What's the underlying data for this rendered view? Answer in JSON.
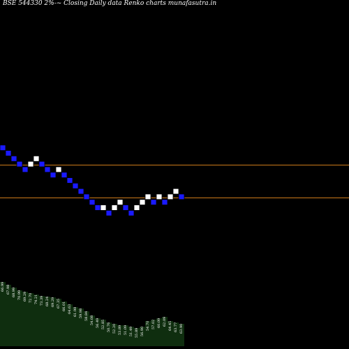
{
  "chart_data": {
    "type": "renko",
    "title": "BSE 544330  2%-~  Closing Daily data  Renko  charts munafasutra.in",
    "colors": {
      "background": "#000000",
      "up_brick": "#ffffff",
      "down_brick": "#1a1aff",
      "brick_border": "#000000",
      "level_line": "#cc7a1a",
      "volume_fill": "#0f2e0f"
    },
    "bricks": [
      {
        "col": 0,
        "row": 9,
        "dir": "down"
      },
      {
        "col": 1,
        "row": 8,
        "dir": "down"
      },
      {
        "col": 2,
        "row": 7,
        "dir": "down"
      },
      {
        "col": 3,
        "row": 6,
        "dir": "down"
      },
      {
        "col": 4,
        "row": 5,
        "dir": "down"
      },
      {
        "col": 5,
        "row": 6,
        "dir": "up"
      },
      {
        "col": 6,
        "row": 7,
        "dir": "up"
      },
      {
        "col": 7,
        "row": 6,
        "dir": "down"
      },
      {
        "col": 8,
        "row": 5,
        "dir": "down"
      },
      {
        "col": 9,
        "row": 4,
        "dir": "down"
      },
      {
        "col": 10,
        "row": 5,
        "dir": "up"
      },
      {
        "col": 11,
        "row": 4,
        "dir": "down"
      },
      {
        "col": 12,
        "row": 3,
        "dir": "down"
      },
      {
        "col": 13,
        "row": 2,
        "dir": "down"
      },
      {
        "col": 14,
        "row": 1,
        "dir": "down"
      },
      {
        "col": 15,
        "row": 0,
        "dir": "down"
      },
      {
        "col": 16,
        "row": -1,
        "dir": "down"
      },
      {
        "col": 17,
        "row": -2,
        "dir": "down"
      },
      {
        "col": 18,
        "row": -2,
        "dir": "up"
      },
      {
        "col": 19,
        "row": -3,
        "dir": "down"
      },
      {
        "col": 20,
        "row": -2,
        "dir": "up"
      },
      {
        "col": 21,
        "row": -1,
        "dir": "up"
      },
      {
        "col": 22,
        "row": -2,
        "dir": "down"
      },
      {
        "col": 23,
        "row": -3,
        "dir": "down"
      },
      {
        "col": 24,
        "row": -2,
        "dir": "up"
      },
      {
        "col": 25,
        "row": -1,
        "dir": "up"
      },
      {
        "col": 26,
        "row": 0,
        "dir": "up"
      },
      {
        "col": 27,
        "row": -1,
        "dir": "down"
      },
      {
        "col": 28,
        "row": 0,
        "dir": "up"
      },
      {
        "col": 29,
        "row": -1,
        "dir": "down"
      },
      {
        "col": 30,
        "row": 0,
        "dir": "up"
      },
      {
        "col": 31,
        "row": 1,
        "dir": "up"
      },
      {
        "col": 32,
        "row": 0,
        "dir": "down"
      }
    ],
    "volume_series": [
      92,
      88,
      84,
      80,
      78,
      76,
      74,
      72,
      71,
      70,
      68,
      64,
      60,
      56,
      54,
      50,
      44,
      40,
      38,
      34,
      32,
      30,
      30,
      28,
      26,
      28,
      36,
      38,
      40,
      42,
      36,
      34,
      32
    ],
    "labels": [
      "66.99",
      "67.98",
      "68.99",
      "70.99",
      "69.29",
      "72.70",
      "74.21",
      "73.39",
      "68.24",
      "69.29",
      "67.35",
      "66.01",
      "64.63",
      "61.98",
      "59.98",
      "58.84",
      "54.08",
      "56.49",
      "52.85",
      "50.76",
      "52.20",
      "53.89",
      "51.09",
      "51.49",
      "55.89",
      "56.90",
      "54.70",
      "57.02",
      "60.09",
      "62.09",
      "64.45",
      "63.77",
      "63.90"
    ]
  }
}
